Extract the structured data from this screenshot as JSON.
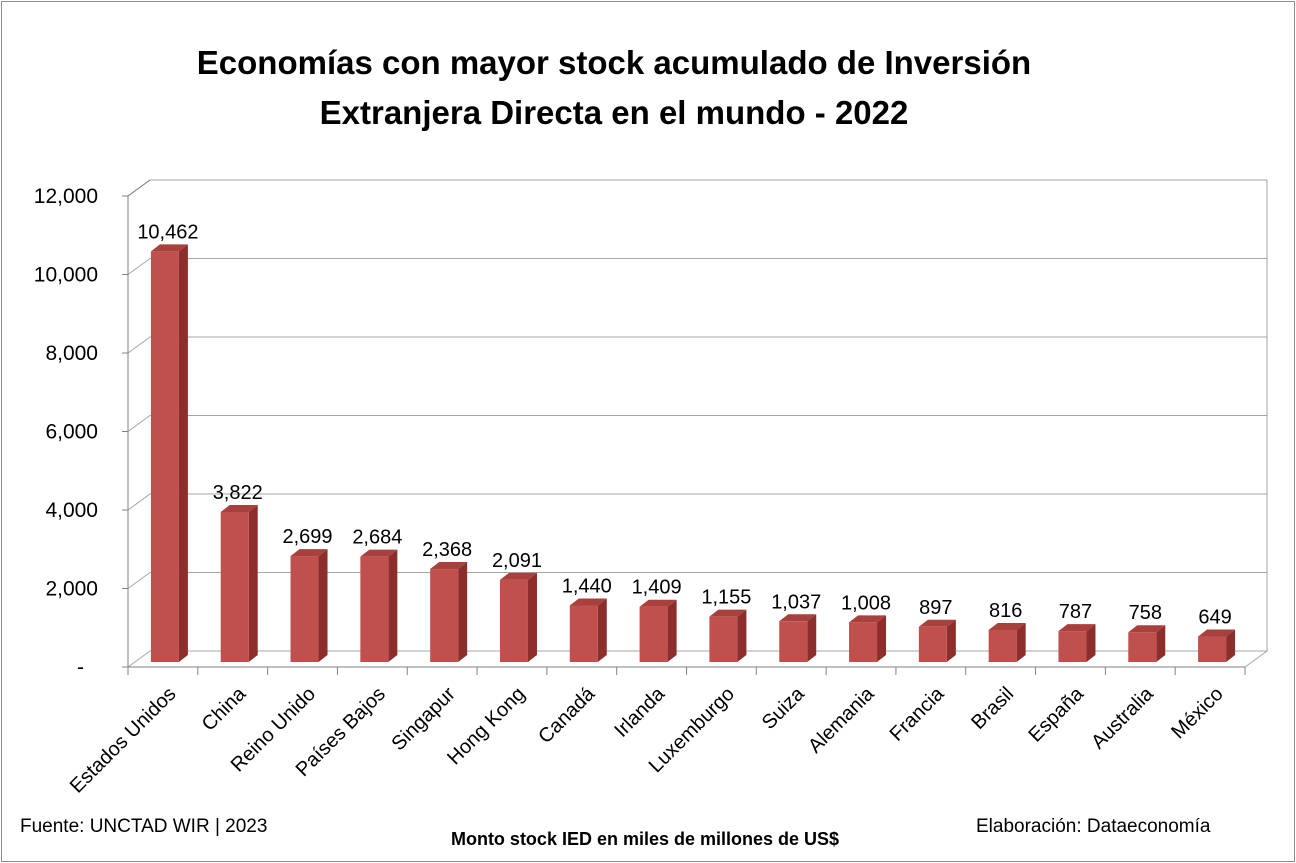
{
  "chart_data": {
    "type": "bar",
    "title_lines": [
      "Economías con mayor stock acumulado de Inversión",
      "Extranjera Directa en el mundo - 2022"
    ],
    "categories": [
      "Estados Unidos",
      "China",
      "Reino Unido",
      "Países Bajos",
      "Singapur",
      "Hong Kong",
      "Canadá",
      "Irlanda",
      "Luxemburgo",
      "Suiza",
      "Alemania",
      "Francia",
      "Brasil",
      "España",
      "Australia",
      "México"
    ],
    "values": [
      10462,
      3822,
      2699,
      2684,
      2368,
      2091,
      1440,
      1409,
      1155,
      1037,
      1008,
      897,
      816,
      787,
      758,
      649
    ],
    "value_labels": [
      "10,462",
      "3,822",
      "2,699",
      "2,684",
      "2,368",
      "2,091",
      "1,440",
      "1,409",
      "1,155",
      "1,037",
      "1,008",
      "897",
      "816",
      "787",
      "758",
      "649"
    ],
    "yticks": [
      0,
      2000,
      4000,
      6000,
      8000,
      10000,
      12000
    ],
    "ytick_labels": [
      "-",
      "2,000",
      "4,000",
      "6,000",
      "8,000",
      "10,000",
      "12,000"
    ],
    "ylim": [
      0,
      12000
    ],
    "xlabel": "Monto stock IED en miles de millones de US$",
    "ylabel": "",
    "grid": true,
    "legend": "none",
    "colors": {
      "bar_front": "#c0504d",
      "bar_side": "#8c2f2c",
      "bar_top": "#a8403d",
      "grid": "#a6a6a6"
    }
  },
  "footer": {
    "source": "Fuente: UNCTAD WIR | 2023",
    "credit": "Elaboración: Dataeconomía"
  }
}
